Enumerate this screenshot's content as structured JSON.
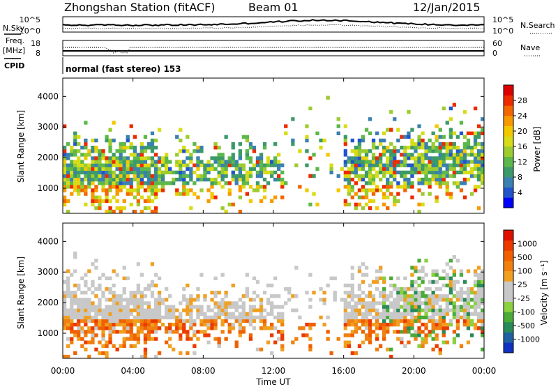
{
  "header": {
    "station": "Zhongshan Station (fitACF)",
    "beam": "Beam 01",
    "date": "12/Jan/2015"
  },
  "top_panels": {
    "nsky_label": "N.Sky",
    "nsearch_label": "N.Search",
    "freq_label_line1": "Freq.",
    "freq_label_line2": "[MHz]",
    "nave_label": "Nave",
    "cpid_label": "CPID",
    "cpid_text": "normal (fast stereo) 153",
    "noise_ticks_left": [
      "10^5",
      "10^0"
    ],
    "noise_ticks_right": [
      "10^5",
      "10^0"
    ],
    "freq_ticks": [
      "18",
      "8"
    ],
    "nave_ticks": [
      "60",
      "0"
    ]
  },
  "chart_data": [
    {
      "type": "heatmap",
      "name": "power",
      "ylabel": "Slant Range [km]",
      "ylim": [
        180,
        4600
      ],
      "yticks": [
        "4000",
        "3000",
        "2000",
        "1000"
      ],
      "colorbar_label": "Power [dB]",
      "colorbar_ticks": [
        "28",
        "24",
        "20",
        "16",
        "12",
        "8",
        "4"
      ],
      "colorbar_colors": [
        "#0000ff",
        "#2255cc",
        "#3a80b0",
        "#3c9a6a",
        "#5cb84a",
        "#9ccc30",
        "#d8dc18",
        "#f4c800",
        "#f69a00",
        "#f36600",
        "#ee2a00",
        "#dd0000"
      ],
      "x": [
        "00:00",
        "04:00",
        "08:00",
        "12:00",
        "16:00",
        "20:00",
        "00:00"
      ]
    },
    {
      "type": "heatmap",
      "name": "velocity",
      "ylabel": "Slant Range [km]",
      "ylim": [
        180,
        4600
      ],
      "yticks": [
        "4000",
        "3000",
        "2000",
        "1000"
      ],
      "colorbar_label": "Velocity [m s⁻¹]",
      "colorbar_ticks": [
        "1000",
        "500",
        "100",
        "25",
        "-25",
        "-100",
        "-500",
        "-1000"
      ],
      "colorbar_colors": [
        "#1030c0",
        "#2060a0",
        "#2a8a5a",
        "#4aaa3a",
        "#8ad040",
        "#c8c8c8",
        "#c8c8c8",
        "#f0a020",
        "#f08010",
        "#f06000",
        "#ec3a00",
        "#e01000"
      ],
      "x": [
        "00:00",
        "04:00",
        "08:00",
        "12:00",
        "16:00",
        "20:00",
        "00:00"
      ],
      "xlabel": "Time UT"
    }
  ]
}
